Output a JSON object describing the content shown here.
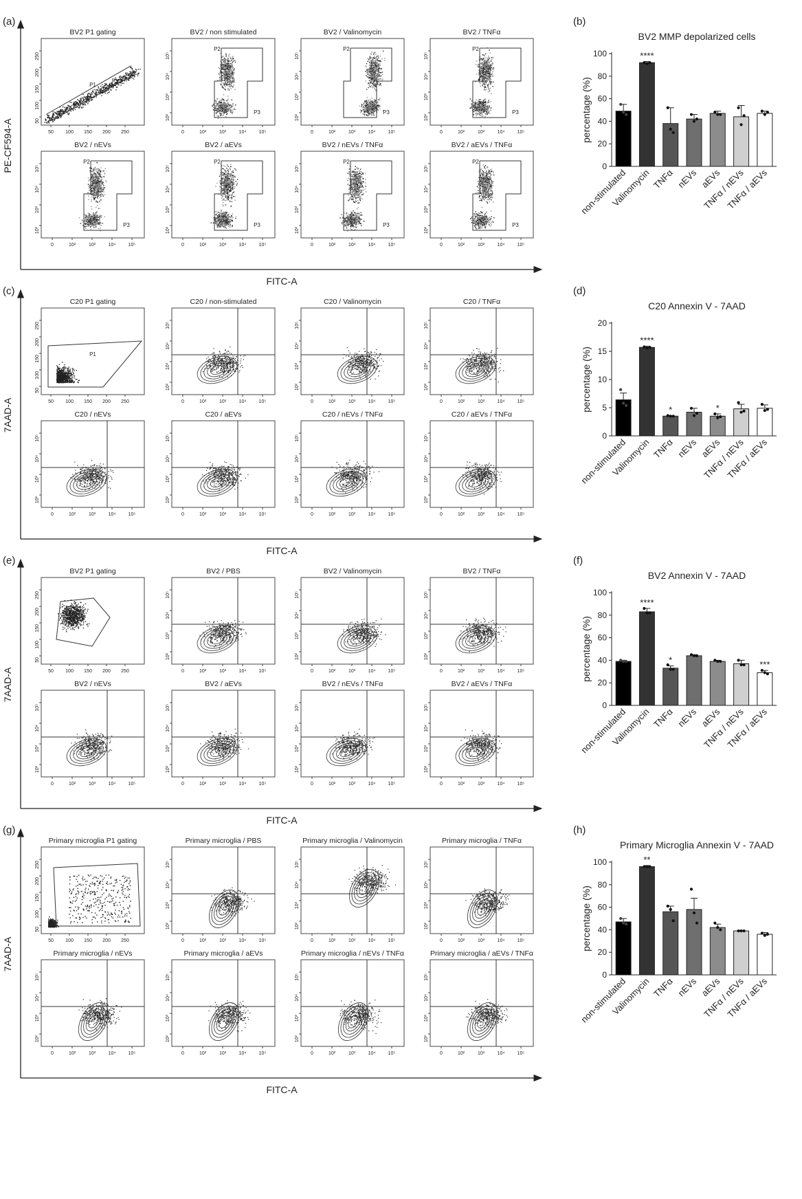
{
  "sections": [
    {
      "letter": "(a)",
      "y_axis_label": "PE-CF594-A",
      "x_axis_label": "FITC-A",
      "panels": [
        {
          "title": "BV2 P1 gating",
          "kind": "gating",
          "gate_label": "P1",
          "xticks": [
            "50",
            "100",
            "150",
            "200",
            "250"
          ],
          "yticks": [
            "50",
            "100",
            "150",
            "200",
            "250"
          ]
        },
        {
          "title": "BV2 / non stimulated",
          "kind": "quad",
          "labels": [
            "P2",
            "P3"
          ]
        },
        {
          "title": "BV2 / Valinomycin",
          "kind": "quad",
          "labels": [
            "P2",
            "P3"
          ]
        },
        {
          "title": "BV2 / TNFα",
          "kind": "quad",
          "labels": [
            "P2",
            "P3"
          ]
        },
        {
          "title": "BV2 / nEVs",
          "kind": "quad",
          "labels": [
            "P2",
            "P3"
          ]
        },
        {
          "title": "BV2 / aEVs",
          "kind": "quad",
          "labels": [
            "P2",
            "P3"
          ]
        },
        {
          "title": "BV2 / nEVs / TNFα",
          "kind": "quad",
          "labels": [
            "P2",
            "P3"
          ]
        },
        {
          "title": "BV2 / aEVs / TNFα",
          "kind": "quad",
          "labels": [
            "P2",
            "P3"
          ]
        }
      ]
    },
    {
      "letter": "(c)",
      "y_axis_label": "7AAD-A",
      "x_axis_label": "FITC-A",
      "panels": [
        {
          "title": "C20 P1 gating",
          "kind": "gating",
          "gate_label": "P1",
          "xticks": [
            "50",
            "100",
            "150",
            "200",
            "250"
          ],
          "yticks": [
            "50",
            "100",
            "150",
            "200",
            "250"
          ]
        },
        {
          "title": "C20 / non-stimulated",
          "kind": "cross"
        },
        {
          "title": "C20 / Valinomycin",
          "kind": "cross"
        },
        {
          "title": "C20 / TNFα",
          "kind": "cross"
        },
        {
          "title": "C20 / nEVs",
          "kind": "cross"
        },
        {
          "title": "C20 / aEVs",
          "kind": "cross"
        },
        {
          "title": "C20 / nEVs / TNFα",
          "kind": "cross"
        },
        {
          "title": "C20 / aEVs / TNFα",
          "kind": "cross"
        }
      ]
    },
    {
      "letter": "(e)",
      "y_axis_label": "7AAD-A",
      "x_axis_label": "FITC-A",
      "panels": [
        {
          "title": "BV2 P1 gating",
          "kind": "gating",
          "gate_label": "",
          "xticks": [
            "50",
            "100",
            "150",
            "200",
            "250"
          ],
          "yticks": [
            "50",
            "100",
            "150",
            "200",
            "250"
          ]
        },
        {
          "title": "BV2 / PBS",
          "kind": "cross"
        },
        {
          "title": "BV2 / Valinomycin",
          "kind": "cross"
        },
        {
          "title": "BV2 / TNFα",
          "kind": "cross"
        },
        {
          "title": "BV2 / nEVs",
          "kind": "cross"
        },
        {
          "title": "BV2 / aEVs",
          "kind": "cross"
        },
        {
          "title": "BV2 / nEVs / TNFα",
          "kind": "cross"
        },
        {
          "title": "BV2 / aEVs / TNFα",
          "kind": "cross"
        }
      ]
    },
    {
      "letter": "(g)",
      "y_axis_label": "7AAD-A",
      "x_axis_label": "FITC-A",
      "panels": [
        {
          "title": "Primary microglia P1 gating",
          "kind": "gating",
          "gate_label": "P1",
          "xticks": [
            "50",
            "100",
            "150",
            "200",
            "250"
          ],
          "yticks": [
            "50",
            "100",
            "150",
            "200",
            "250"
          ]
        },
        {
          "title": "Primary microglia / PBS",
          "kind": "cross"
        },
        {
          "title": "Primary microglia / Valinomycin",
          "kind": "cross"
        },
        {
          "title": "Primary microglia / TNFα",
          "kind": "cross"
        },
        {
          "title": "Primary microglia  / nEVs",
          "kind": "cross"
        },
        {
          "title": "Primary microglia  / aEVs",
          "kind": "cross"
        },
        {
          "title": "Primary microglia  / nEVs / TNFα",
          "kind": "cross"
        },
        {
          "title": "Primary microglia  / aEVs / TNFα",
          "kind": "cross"
        }
      ]
    }
  ],
  "log_ticks_x": [
    "0",
    "10²",
    "10³",
    "10⁴",
    "10⁵"
  ],
  "log_ticks_y": [
    "10²",
    "10³",
    "10⁴",
    "10⁵"
  ],
  "colors": {
    "bars": [
      "#000000",
      "#333333",
      "#555555",
      "#6f6f6f",
      "#8c8c8c",
      "#cfcfcf",
      "#ffffff"
    ],
    "scatter_dark": "#222222",
    "scatter_light": "#8a8a8a"
  },
  "chart_data": [
    {
      "letter": "(b)",
      "type": "bar",
      "title": "BV2 MMP depolarized cells",
      "ylabel": "percentage (%)",
      "ylim": [
        0,
        100
      ],
      "yticks": [
        0,
        20,
        40,
        60,
        80,
        100
      ],
      "categories": [
        "non-stimulated",
        "Valinomycin",
        "TNFα",
        "nEVs",
        "aEVs",
        "TNFα / nEVs",
        "TNFα / aEVs"
      ],
      "values": [
        49,
        92,
        38,
        42,
        47,
        44,
        47
      ],
      "errors": [
        6,
        1,
        14,
        4,
        2,
        10,
        2
      ],
      "significance": [
        "",
        "****",
        "",
        "",
        "",
        "",
        ""
      ],
      "points": [
        [
          55,
          48,
          46
        ],
        [
          92,
          91,
          92
        ],
        [
          52,
          33,
          30
        ],
        [
          46,
          40,
          42
        ],
        [
          48,
          46,
          46
        ],
        [
          52,
          37,
          45
        ],
        [
          49,
          46,
          48
        ]
      ]
    },
    {
      "letter": "(d)",
      "type": "bar",
      "title": "C20 Annexin V - 7AAD",
      "ylabel": "percentage (%)",
      "ylim": [
        0,
        20
      ],
      "yticks": [
        0,
        5,
        10,
        15,
        20
      ],
      "categories": [
        "non-stimulated",
        "Valinomycin",
        "TNFα",
        "nEVs",
        "aEVs",
        "TNFα / nEVs",
        "TNFα / aEVs"
      ],
      "values": [
        6.4,
        15.7,
        3.5,
        4.2,
        3.5,
        4.8,
        4.9
      ],
      "errors": [
        1.2,
        0.2,
        0.1,
        0.7,
        0.4,
        0.8,
        0.6
      ],
      "significance": [
        "",
        "****",
        "*",
        "",
        "*",
        "",
        ""
      ],
      "points": [
        [
          8.2,
          5.8,
          5.4
        ],
        [
          15.8,
          15.6,
          15.7
        ],
        [
          3.6,
          3.5,
          3.5
        ],
        [
          4.9,
          3.6,
          4.0
        ],
        [
          3.9,
          3.2,
          3.4
        ],
        [
          5.9,
          4.2,
          4.4
        ],
        [
          5.6,
          4.5,
          4.7
        ]
      ]
    },
    {
      "letter": "(f)",
      "type": "bar",
      "title": "BV2 Annexin V - 7AAD",
      "ylabel": "percentage (%)",
      "ylim": [
        0,
        100
      ],
      "yticks": [
        0,
        20,
        40,
        60,
        80,
        100
      ],
      "categories": [
        "non-stimulated",
        "Valinomycin",
        "TNFα",
        "nEVs",
        "aEVs",
        "TNFα / nEVs",
        "TNFα / aEVs"
      ],
      "values": [
        39,
        83,
        33,
        44,
        39,
        37,
        29
      ],
      "errors": [
        1,
        3,
        2,
        1,
        1,
        3,
        2
      ],
      "significance": [
        "",
        "****",
        "*",
        "",
        "",
        "",
        "***"
      ],
      "points": [
        [
          40,
          39,
          39
        ],
        [
          86,
          82,
          82
        ],
        [
          36,
          32,
          32
        ],
        [
          45,
          44,
          44
        ],
        [
          40,
          39,
          39
        ],
        [
          40,
          36,
          36
        ],
        [
          31,
          29,
          28
        ]
      ]
    },
    {
      "letter": "(h)",
      "type": "bar",
      "title": "Primary Microglia Annexin V - 7AAD",
      "ylabel": "percentage (%)",
      "ylim": [
        0,
        100
      ],
      "yticks": [
        0,
        20,
        40,
        60,
        80,
        100
      ],
      "categories": [
        "non-stimulated",
        "Valinomycin",
        "TNFα",
        "nEVs",
        "aEVs",
        "TNFα / nEVs",
        "TNFα / aEVs"
      ],
      "values": [
        47,
        96,
        56,
        58,
        42,
        39,
        36
      ],
      "errors": [
        3,
        1,
        5,
        10,
        3,
        0.5,
        1.5
      ],
      "significance": [
        "",
        "**",
        "",
        "",
        "",
        "",
        ""
      ],
      "points": [
        [
          50,
          46,
          45
        ],
        [
          96,
          96,
          96
        ],
        [
          61,
          58,
          48
        ],
        [
          76,
          55,
          46
        ],
        [
          46,
          42,
          40
        ],
        [
          39,
          39,
          39
        ],
        [
          37,
          35,
          36
        ]
      ]
    }
  ]
}
